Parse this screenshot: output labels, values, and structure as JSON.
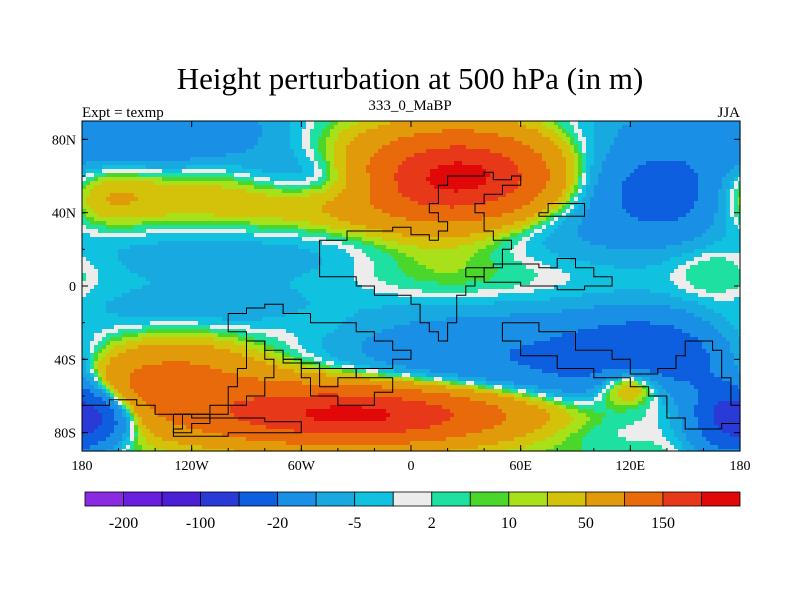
{
  "chart_data": {
    "type": "heatmap",
    "title": "Height perturbation at 500 hPa (in m)",
    "left_label": "Expt = texmp",
    "center_label": "333_0_MaBP",
    "right_label": "JJA",
    "x_range": [
      -180,
      180
    ],
    "y_range": [
      -90,
      90
    ],
    "x_ticks": [
      {
        "value": -180,
        "label": "180"
      },
      {
        "value": -120,
        "label": "120W"
      },
      {
        "value": -60,
        "label": "60W"
      },
      {
        "value": 0,
        "label": "0"
      },
      {
        "value": 60,
        "label": "60E"
      },
      {
        "value": 120,
        "label": "120E"
      },
      {
        "value": 180,
        "label": "180"
      }
    ],
    "y_ticks": [
      {
        "value": 80,
        "label": "80N"
      },
      {
        "value": 40,
        "label": "40N"
      },
      {
        "value": 0,
        "label": "0"
      },
      {
        "value": -40,
        "label": "40S"
      },
      {
        "value": -80,
        "label": "80S"
      }
    ],
    "colorbar": {
      "colors": [
        "#8a2be2",
        "#6a1fe0",
        "#4a1fd6",
        "#2a3ad6",
        "#0e5fe0",
        "#1a8fe6",
        "#18a9e0",
        "#10c2e0",
        "#ececec",
        "#1ee0a0",
        "#4ad62a",
        "#a8e01a",
        "#d4c20a",
        "#e09a0a",
        "#e86a0a",
        "#e8381a",
        "#e00808"
      ],
      "labels": [
        {
          "after_box": 1,
          "text": "-200"
        },
        {
          "after_box": 3,
          "text": "-100"
        },
        {
          "after_box": 5,
          "text": "-20"
        },
        {
          "after_box": 7,
          "text": "-5"
        },
        {
          "after_box": 9,
          "text": "2"
        },
        {
          "after_box": 11,
          "text": "10"
        },
        {
          "after_box": 13,
          "text": "50"
        },
        {
          "after_box": 15,
          "text": "150"
        }
      ]
    },
    "blobs": [
      {
        "lon": 0,
        "lat": 0,
        "rx": 400,
        "ry": 40,
        "v": -8
      },
      {
        "lon": -130,
        "lat": 85,
        "rx": 60,
        "ry": 20,
        "v": -40
      },
      {
        "lon": 150,
        "lat": 80,
        "rx": 70,
        "ry": 25,
        "v": -25
      },
      {
        "lon": 30,
        "lat": 60,
        "rx": 50,
        "ry": 22,
        "v": 150
      },
      {
        "lon": 30,
        "lat": 58,
        "rx": 90,
        "ry": 30,
        "v": 30
      },
      {
        "lon": -80,
        "lat": 48,
        "rx": 140,
        "ry": 18,
        "v": 20
      },
      {
        "lon": -170,
        "lat": 50,
        "rx": 30,
        "ry": 20,
        "v": 20
      },
      {
        "lon": -60,
        "lat": 60,
        "rx": 35,
        "ry": 15,
        "v": -30
      },
      {
        "lon": -30,
        "lat": 55,
        "rx": 25,
        "ry": 12,
        "v": -20
      },
      {
        "lon": -80,
        "lat": 20,
        "rx": 100,
        "ry": 16,
        "v": -10
      },
      {
        "lon": 90,
        "lat": 55,
        "rx": 70,
        "ry": 25,
        "v": -40
      },
      {
        "lon": 140,
        "lat": 50,
        "rx": 30,
        "ry": 18,
        "v": -60
      },
      {
        "lon": 110,
        "lat": 30,
        "rx": 80,
        "ry": 18,
        "v": -15
      },
      {
        "lon": 120,
        "lat": 75,
        "rx": 40,
        "ry": 10,
        "v": 2
      },
      {
        "lon": 165,
        "lat": 10,
        "rx": 25,
        "ry": 18,
        "v": 12
      },
      {
        "lon": 10,
        "lat": 20,
        "rx": 45,
        "ry": 22,
        "v": 10
      },
      {
        "lon": 40,
        "lat": 5,
        "rx": 70,
        "ry": 15,
        "v": 8
      },
      {
        "lon": -50,
        "lat": -20,
        "rx": 30,
        "ry": 12,
        "v": 6
      },
      {
        "lon": -110,
        "lat": -12,
        "rx": 60,
        "ry": 10,
        "v": -10
      },
      {
        "lon": -140,
        "lat": -50,
        "rx": 60,
        "ry": 20,
        "v": 60
      },
      {
        "lon": -30,
        "lat": -70,
        "rx": 80,
        "ry": 15,
        "v": 150
      },
      {
        "lon": -60,
        "lat": -60,
        "rx": 110,
        "ry": 30,
        "v": 20
      },
      {
        "lon": -170,
        "lat": -72,
        "rx": 20,
        "ry": 12,
        "v": -60
      },
      {
        "lon": 60,
        "lat": -40,
        "rx": 120,
        "ry": 22,
        "v": -50
      },
      {
        "lon": 130,
        "lat": -40,
        "rx": 40,
        "ry": 20,
        "v": -80
      },
      {
        "lon": 120,
        "lat": -52,
        "rx": 20,
        "ry": 12,
        "v": 80
      },
      {
        "lon": 175,
        "lat": -70,
        "rx": 20,
        "ry": 20,
        "v": -120
      },
      {
        "lon": 90,
        "lat": -80,
        "rx": 80,
        "ry": 8,
        "v": -5
      },
      {
        "lon": 170,
        "lat": -25,
        "rx": 20,
        "ry": 15,
        "v": 10
      }
    ]
  }
}
